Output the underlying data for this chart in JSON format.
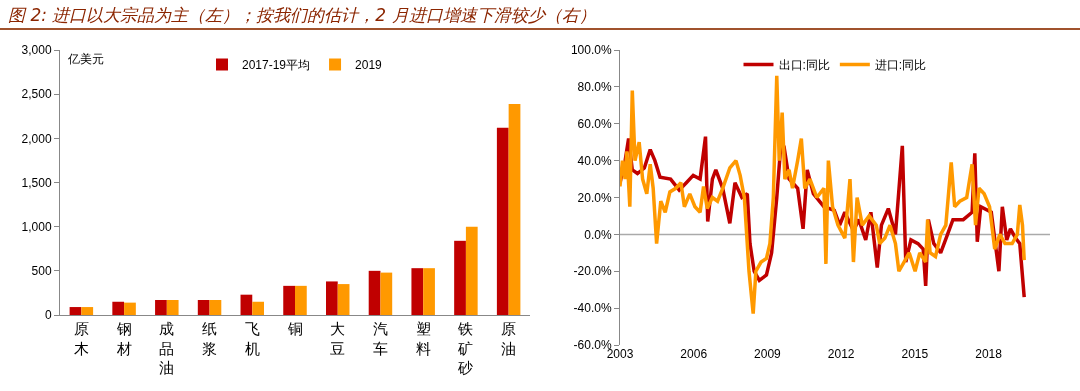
{
  "chart_data": [
    {
      "type": "bar",
      "title": "图 2: 进口以大宗品为主（左）；按我们的估计，2 月进口增速下滑较少（右）",
      "ylabel": "亿美元",
      "categories": [
        "原木",
        "钢材",
        "成品油",
        "纸浆",
        "飞机",
        "铜",
        "大豆",
        "汽车",
        "塑料",
        "铁矿砂",
        "原油"
      ],
      "series": [
        {
          "name": "2017-19平均",
          "color": "#c00000",
          "values": [
            90,
            150,
            170,
            170,
            230,
            330,
            380,
            500,
            530,
            840,
            2120
          ]
        },
        {
          "name": "2019",
          "color": "#ff9900",
          "values": [
            90,
            140,
            170,
            170,
            150,
            330,
            350,
            480,
            530,
            1000,
            2390
          ]
        }
      ],
      "ylim": [
        0,
        3000
      ],
      "yticks": [
        0,
        {
          "value": 500,
          "label": "500"
        },
        {
          "value": 1000,
          "label": "1,000"
        },
        {
          "value": 1500,
          "label": "1,500"
        },
        {
          "value": 2000,
          "label": "2,000"
        },
        {
          "value": 2500,
          "label": "2,500"
        },
        {
          "value": 3000,
          "label": "3,000"
        }
      ],
      "grid": false,
      "legend": "top"
    },
    {
      "type": "line",
      "xlim": [
        2003,
        2020.5
      ],
      "xticks": [
        2003,
        2006,
        2009,
        2012,
        2015,
        2018
      ],
      "series": [
        {
          "name": "出口:同比",
          "color": "#c00000",
          "x": [
            2003.0,
            2003.21,
            2003.35,
            2003.5,
            2003.71,
            2003.99,
            2004.23,
            2004.42,
            2004.63,
            2005.06,
            2005.41,
            2005.7,
            2005.98,
            2006.26,
            2006.48,
            2006.57,
            2006.76,
            2006.9,
            2007.18,
            2007.47,
            2007.68,
            2007.96,
            2008.18,
            2008.29,
            2008.46,
            2008.67,
            2008.96,
            2009.17,
            2009.38,
            2009.52,
            2009.67,
            2009.88,
            2010.23,
            2010.45,
            2010.62,
            2010.87,
            2011.3,
            2011.72,
            2011.94,
            2012.15,
            2012.5,
            2012.72,
            2013.0,
            2013.21,
            2013.47,
            2013.64,
            2013.92,
            2014.21,
            2014.49,
            2014.63,
            2014.84,
            2015.13,
            2015.34,
            2015.44,
            2015.55,
            2015.77,
            2016.05,
            2016.33,
            2016.55,
            2016.97,
            2017.33,
            2017.44,
            2017.54,
            2017.68,
            2018.11,
            2018.42,
            2018.56,
            2018.74,
            2018.89,
            2019.1,
            2019.27,
            2019.45
          ],
          "values": [
            28,
            40,
            52,
            35,
            33,
            36,
            46,
            40,
            31,
            30,
            24,
            28,
            32,
            30,
            53,
            7,
            30,
            35,
            25,
            6,
            28,
            20,
            22,
            -5,
            -20,
            -25,
            -22,
            -10,
            20,
            44,
            48,
            30,
            25,
            3,
            35,
            22,
            15,
            13,
            5,
            12,
            2,
            8,
            -3,
            12,
            -18,
            5,
            14,
            0,
            48,
            -15,
            -3,
            -5,
            -8,
            -28,
            8,
            -5,
            -10,
            0,
            8,
            8,
            12,
            44,
            -4,
            15,
            12,
            -20,
            15,
            -3,
            3,
            -2,
            -5,
            -34
          ]
        },
        {
          "name": "进口:同比",
          "color": "#ff9900",
          "x": [
            2003.0,
            2003.1,
            2003.21,
            2003.28,
            2003.4,
            2003.5,
            2003.61,
            2003.78,
            2003.92,
            2004.09,
            2004.23,
            2004.35,
            2004.49,
            2004.66,
            2004.84,
            2005.03,
            2005.27,
            2005.48,
            2005.62,
            2005.84,
            2006.05,
            2006.26,
            2006.4,
            2006.55,
            2006.76,
            2006.97,
            2007.18,
            2007.47,
            2007.72,
            2007.89,
            2008.06,
            2008.25,
            2008.42,
            2008.53,
            2008.74,
            2008.96,
            2009.1,
            2009.24,
            2009.38,
            2009.48,
            2009.6,
            2009.71,
            2009.88,
            2010.02,
            2010.23,
            2010.38,
            2010.52,
            2010.73,
            2011.01,
            2011.3,
            2011.38,
            2011.48,
            2011.65,
            2011.87,
            2012.15,
            2012.36,
            2012.5,
            2012.65,
            2012.86,
            2013.14,
            2013.43,
            2013.57,
            2013.78,
            2013.99,
            2014.21,
            2014.35,
            2014.56,
            2014.77,
            2015.01,
            2015.2,
            2015.44,
            2015.52,
            2015.62,
            2015.84,
            2016.05,
            2016.26,
            2016.48,
            2016.62,
            2016.83,
            2017.11,
            2017.33,
            2017.47,
            2017.61,
            2017.82,
            2018.04,
            2018.25,
            2018.46,
            2018.67,
            2018.96,
            2019.17,
            2019.27,
            2019.38,
            2019.45
          ],
          "values": [
            26,
            40,
            30,
            45,
            15,
            78,
            40,
            50,
            30,
            22,
            38,
            25,
            -5,
            18,
            12,
            23,
            25,
            28,
            15,
            22,
            15,
            12,
            26,
            14,
            20,
            18,
            25,
            36,
            40,
            32,
            20,
            -20,
            -43,
            -20,
            -15,
            -13,
            -5,
            20,
            86,
            40,
            66,
            30,
            35,
            25,
            40,
            52,
            25,
            30,
            20,
            25,
            -16,
            40,
            15,
            5,
            -2,
            30,
            -15,
            20,
            5,
            10,
            5,
            -5,
            -2,
            5,
            -5,
            -20,
            -15,
            -10,
            -20,
            -10,
            -15,
            8,
            -10,
            -12,
            0,
            5,
            39,
            15,
            18,
            20,
            38,
            5,
            25,
            22,
            15,
            -8,
            0,
            -5,
            -5,
            0,
            16,
            5,
            -14
          ]
        }
      ],
      "ylim": [
        -60,
        100
      ],
      "yticks": [
        {
          "value": -60,
          "label": "-60.0%"
        },
        {
          "value": -40,
          "label": "-40.0%"
        },
        {
          "value": -20,
          "label": "-20.0%"
        },
        {
          "value": 0,
          "label": "0.0%"
        },
        {
          "value": 20,
          "label": "20.0%"
        },
        {
          "value": 40,
          "label": "40.0%"
        },
        {
          "value": 60,
          "label": "60.0%"
        },
        {
          "value": 80,
          "label": "80.0%"
        },
        {
          "value": 100,
          "label": "100.0%"
        }
      ],
      "ref_lines": [
        {
          "axis": "y",
          "value": 0,
          "color": "#aaaaaa"
        }
      ],
      "grid": false,
      "legend": "top",
      "marker": "none",
      "line_style": "solid"
    }
  ]
}
